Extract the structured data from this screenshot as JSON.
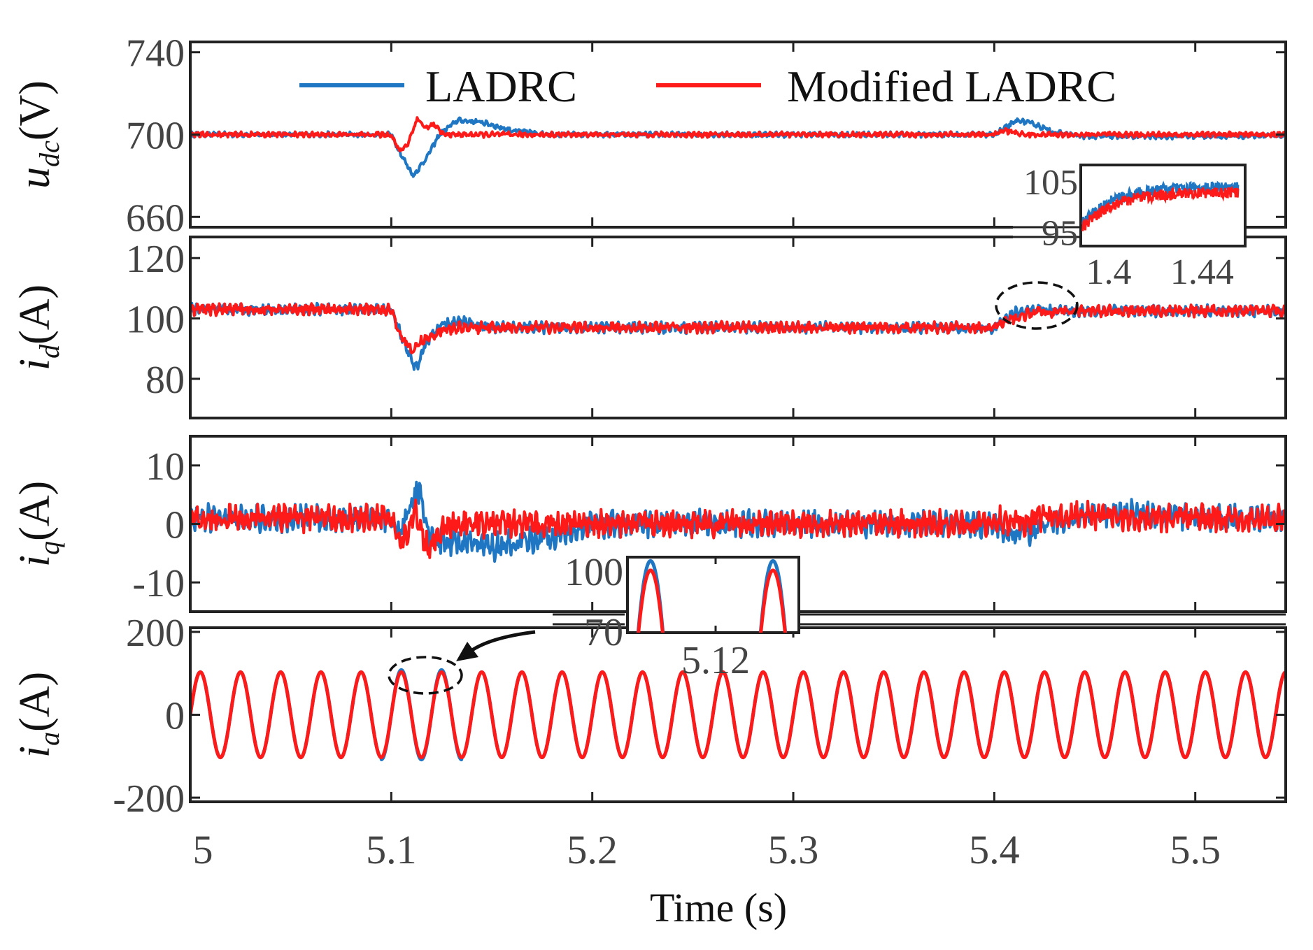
{
  "chart_data": {
    "type": "line",
    "xlabel": "Time (s)",
    "xlim": [
      5.0,
      5.545
    ],
    "xticks": [
      "5",
      "5.1",
      "5.2",
      "5.3",
      "5.4",
      "5.5"
    ],
    "xtick_values": [
      5.0,
      5.1,
      5.2,
      5.3,
      5.4,
      5.5
    ],
    "legend": [
      {
        "name": "LADRC",
        "color": "#1f77c4"
      },
      {
        "name": "Modified LADRC",
        "color": "#ff1a1a"
      }
    ],
    "panels": [
      {
        "id": "udc",
        "ylabel_main": "u",
        "ylabel_sub": "dc",
        "ylabel_unit": "(V)",
        "ylim": [
          655,
          745
        ],
        "yticks": [
          "740",
          "700",
          "660"
        ],
        "ytick_values": [
          740,
          700,
          660
        ],
        "series": [
          {
            "name": "LADRC",
            "x": [
              5.0,
              5.1,
              5.105,
              5.111,
              5.117,
              5.124,
              5.133,
              5.145,
              5.16,
              5.18,
              5.4,
              5.405,
              5.412,
              5.42,
              5.43,
              5.445,
              5.545
            ],
            "y": [
              700,
              700,
              690,
              680,
              688,
              700,
              707,
              706,
              702,
              700,
              700,
              703,
              707,
              705,
              701,
              699,
              699.5
            ]
          },
          {
            "name": "Modified LADRC",
            "x": [
              5.0,
              5.1,
              5.104,
              5.108,
              5.113,
              5.117,
              5.121,
              5.126,
              5.135,
              5.4,
              5.405,
              5.415,
              5.545
            ],
            "y": [
              700,
              700,
              692,
              695,
              708,
              703,
              705,
              700,
              700,
              700,
              702,
              700,
              700
            ]
          }
        ]
      },
      {
        "id": "id",
        "ylabel_main": "i",
        "ylabel_sub": "d",
        "ylabel_unit": "(A)",
        "ylim": [
          67,
          127
        ],
        "yticks": [
          "120",
          "100",
          "80"
        ],
        "ytick_values": [
          120,
          100,
          80
        ],
        "series": [
          {
            "name": "LADRC",
            "x": [
              5.0,
              5.1,
              5.105,
              5.112,
              5.118,
              5.126,
              5.136,
              5.15,
              5.17,
              5.4,
              5.41,
              5.42,
              5.44,
              5.545
            ],
            "y": [
              103,
              103,
              94,
              83,
              93,
              98,
              99,
              97,
              97,
              97,
              102,
              103,
              102.5,
              102.5
            ]
          },
          {
            "name": "Modified LADRC",
            "x": [
              5.0,
              5.1,
              5.105,
              5.11,
              5.116,
              5.125,
              5.135,
              5.15,
              5.4,
              5.41,
              5.42,
              5.44,
              5.545
            ],
            "y": [
              103,
              103,
              94,
              89,
              93,
              96,
              97,
              97,
              97,
              100,
              102,
              102.5,
              102.5
            ]
          }
        ]
      },
      {
        "id": "iq",
        "ylabel_main": "i",
        "ylabel_sub": "q",
        "ylabel_unit": "(A)",
        "ylim": [
          -15,
          15
        ],
        "yticks": [
          "10",
          "0",
          "-10"
        ],
        "ytick_values": [
          10,
          0,
          -10
        ],
        "series": [
          {
            "name": "LADRC",
            "x": [
              5.0,
              5.1,
              5.104,
              5.109,
              5.114,
              5.12,
              5.13,
              5.15,
              5.18,
              5.2,
              5.3,
              5.4,
              5.41,
              5.42,
              5.44,
              5.46,
              5.5,
              5.545
            ],
            "y": [
              1,
              1,
              -2,
              3,
              6,
              -3,
              -3,
              -4,
              -2,
              0,
              0,
              0,
              -2,
              -1,
              1,
              2,
              1,
              1
            ]
          },
          {
            "name": "Modified LADRC",
            "x": [
              5.0,
              5.1,
              5.104,
              5.108,
              5.112,
              5.118,
              5.128,
              5.15,
              5.2,
              5.3,
              5.4,
              5.403,
              5.41,
              5.43,
              5.5,
              5.545
            ],
            "y": [
              1,
              1,
              -4,
              -1,
              2,
              -4,
              0,
              0,
              0,
              0,
              0,
              1,
              0,
              1.5,
              1,
              1
            ]
          }
        ]
      },
      {
        "id": "ia",
        "ylabel_main": "i",
        "ylabel_sub": "a",
        "ylabel_unit": "(A)",
        "ylim": [
          -210,
          210
        ],
        "yticks": [
          "200",
          "0",
          "-200"
        ],
        "ytick_values": [
          200,
          0,
          -200
        ],
        "series": [
          {
            "name": "LADRC",
            "amplitude": 103,
            "frequency_hz": 50
          },
          {
            "name": "Modified LADRC",
            "amplitude": 103,
            "frequency_hz": 50
          }
        ]
      }
    ],
    "insets": [
      {
        "id": "inset-id",
        "yticks": [
          "105",
          "95"
        ],
        "ytick_values": [
          105,
          95
        ],
        "xticks": [
          "1.4",
          "1.44"
        ],
        "xtick_values": [
          1.4,
          1.44
        ]
      },
      {
        "id": "inset-ia",
        "yticks": [
          "100",
          "70"
        ],
        "ytick_values": [
          100,
          70
        ],
        "xticks": [
          "5.12"
        ],
        "xtick_values": [
          5.12
        ]
      }
    ]
  }
}
